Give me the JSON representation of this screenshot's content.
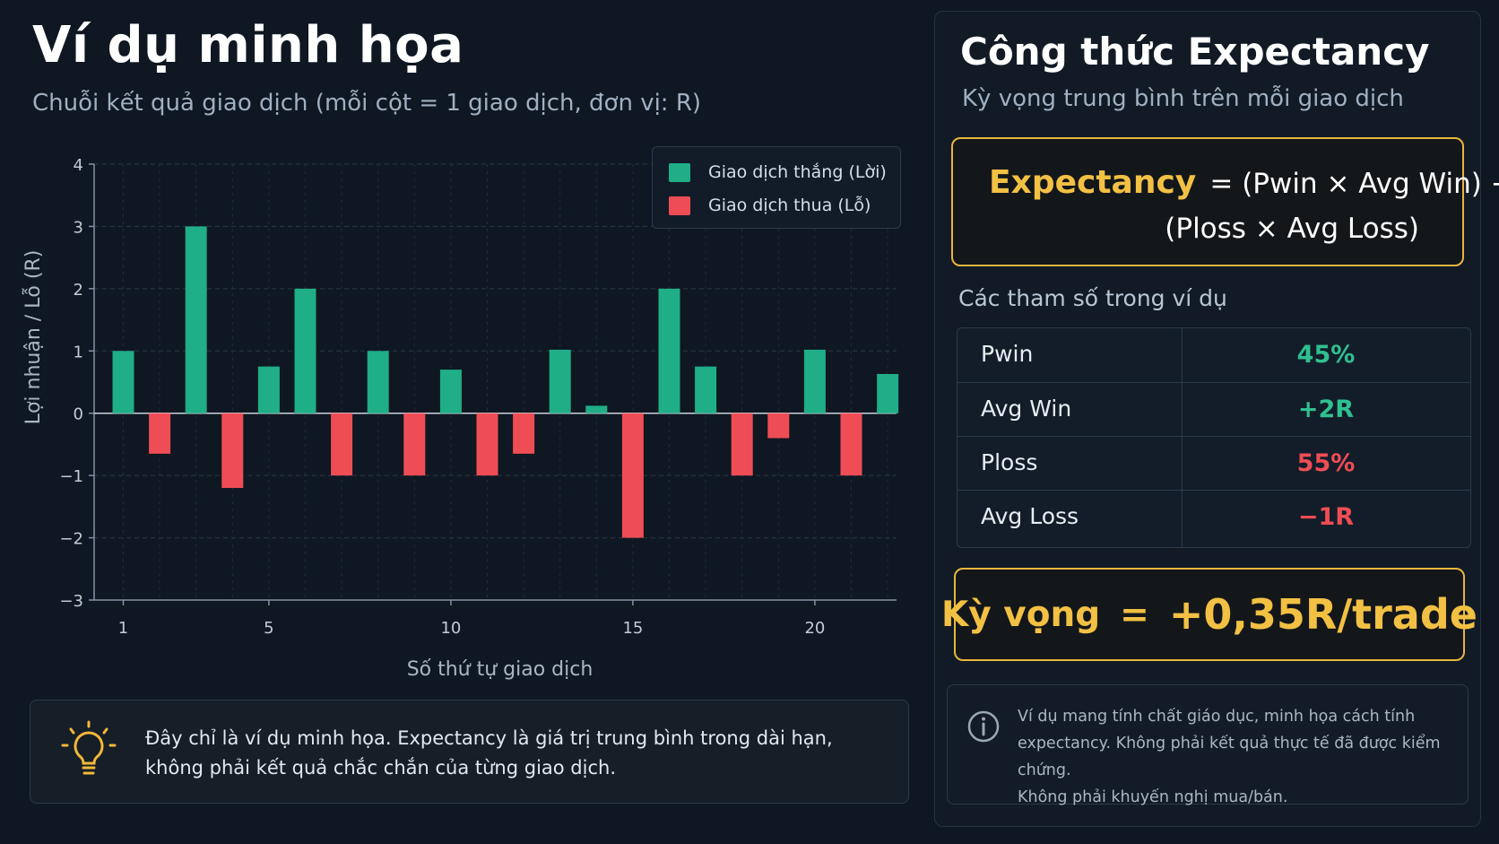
{
  "left": {
    "title": "Ví dụ minh họa",
    "subtitle": "Chuỗi kết quả giao dịch (mỗi cột = 1 giao dịch, đơn vị: R)"
  },
  "chart_data": {
    "type": "bar",
    "xlabel": "Số thứ tự giao dịch",
    "ylabel": "Lợi nhuận / Lỗ (R)",
    "x": [
      1,
      2,
      3,
      4,
      5,
      6,
      7,
      8,
      9,
      10,
      11,
      12,
      13,
      14,
      15,
      16,
      17,
      18,
      19,
      20,
      21,
      22
    ],
    "values": [
      1.0,
      -0.65,
      3.0,
      -1.2,
      0.75,
      2.0,
      -1.0,
      1.0,
      -1.0,
      0.7,
      -1.0,
      -0.65,
      1.02,
      0.12,
      -2.0,
      2.0,
      0.75,
      -1.0,
      -0.4,
      1.02,
      -1.0,
      0.63
    ],
    "ylim": [
      -3,
      4
    ],
    "yticks": [
      -3,
      -2,
      -1,
      0,
      1,
      2,
      3,
      4
    ],
    "ytick_labels": [
      "−3",
      "−2",
      "−1",
      "0",
      "1",
      "2",
      "3",
      "4"
    ],
    "xticks": [
      1,
      5,
      10,
      15,
      20
    ],
    "xtick_labels": [
      "1",
      "5",
      "10",
      "15",
      "20"
    ],
    "grid": true,
    "legend_position": "top-right",
    "colors": {
      "win": "#1fae86",
      "loss": "#ef4d55"
    }
  },
  "legend": {
    "win_label": "Giao dịch thắng (Lời)",
    "loss_label": "Giao dịch thua (Lỗ)"
  },
  "note": {
    "icon": "lightbulb-icon",
    "text_line1": "Đây chỉ là ví dụ minh họa. Expectancy là giá trị trung bình trong dài hạn,",
    "text_line2": "không phải kết quả chắc chắn của từng giao dịch."
  },
  "right": {
    "title": "Công thức Expectancy",
    "subtitle": "Kỳ vọng trung bình trên mỗi giao dịch",
    "formula": {
      "keyword": "Expectancy",
      "part1": "= (Pwin × Avg Win) −",
      "part2": "(Ploss × Avg Loss)"
    },
    "params_heading": "Các tham số trong ví dụ",
    "params": [
      {
        "name": "Pwin",
        "value": "45%",
        "color": "#2fc08f"
      },
      {
        "name": "Avg Win",
        "value": "+2R",
        "color": "#2fc08f"
      },
      {
        "name": "Ploss",
        "value": "55%",
        "color": "#ef4d55"
      },
      {
        "name": "Avg Loss",
        "value": "−1R",
        "color": "#ef4d55"
      }
    ],
    "result": {
      "label": "Kỳ vọng",
      "equals": "=",
      "value": "+0,35R/trade"
    },
    "disclaimer": {
      "icon": "info-icon",
      "line1": "Ví dụ mang tính chất giáo dục, minh họa cách tính",
      "line2": "expectancy. Không phải kết quả thực tế đã được kiểm chứng.",
      "line3": "Không phải khuyến nghị mua/bán."
    },
    "accent_color": "#f2c043"
  }
}
